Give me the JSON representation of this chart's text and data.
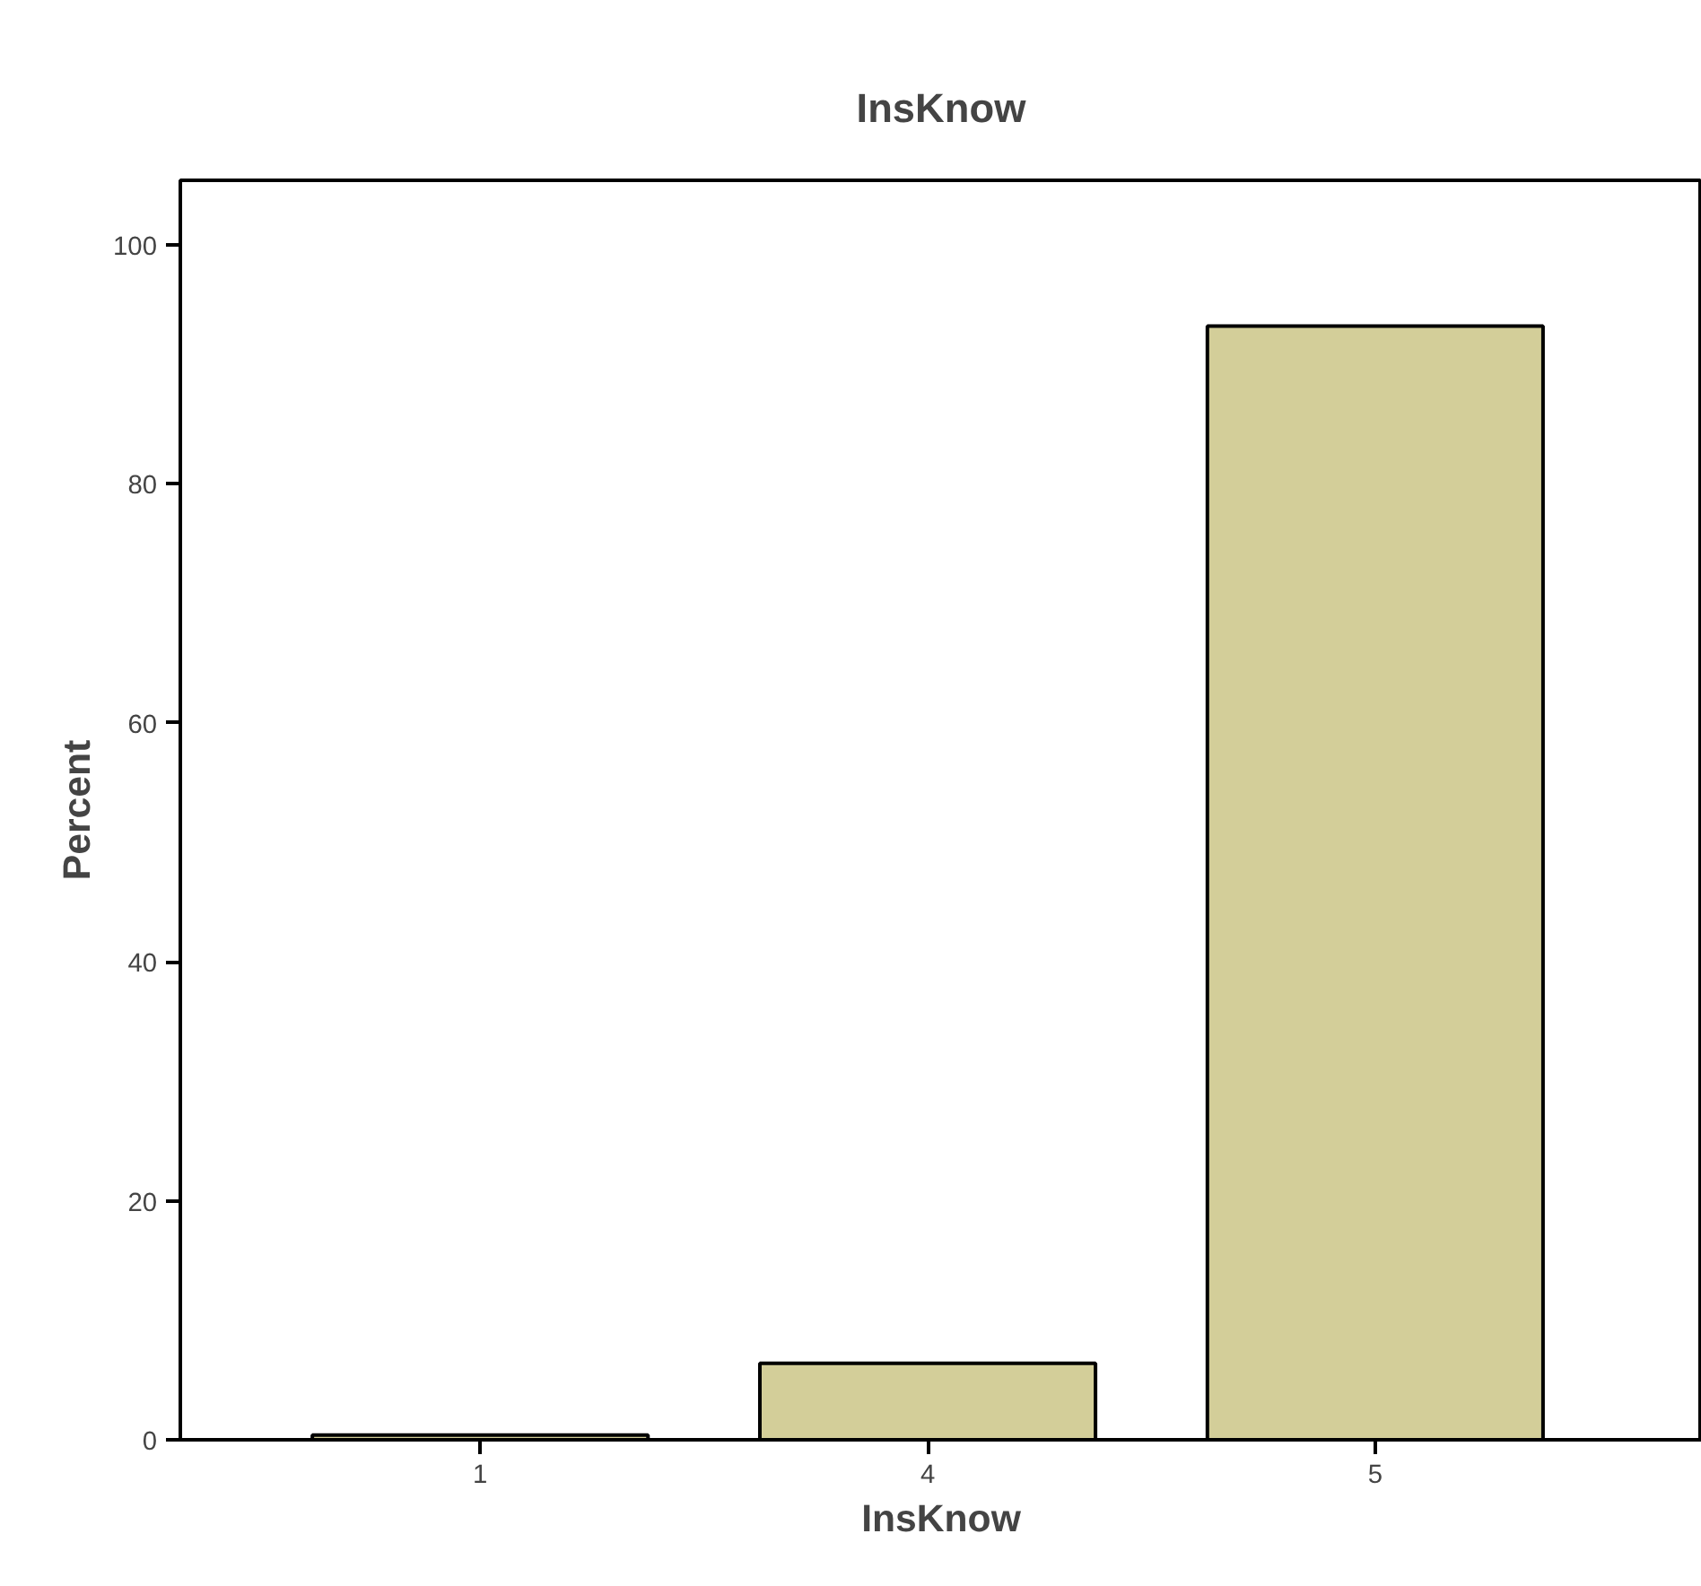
{
  "chart_data": {
    "type": "bar",
    "title": "InsKnow",
    "xlabel": "InsKnow",
    "ylabel": "Percent",
    "categories": [
      "1",
      "4",
      "5"
    ],
    "values": [
      0.4,
      6.4,
      93.2
    ],
    "color": "#d3ce99",
    "ylim": [
      0,
      105.4
    ],
    "yticks": [
      0,
      20,
      40,
      60,
      80,
      100
    ],
    "grid": false
  }
}
